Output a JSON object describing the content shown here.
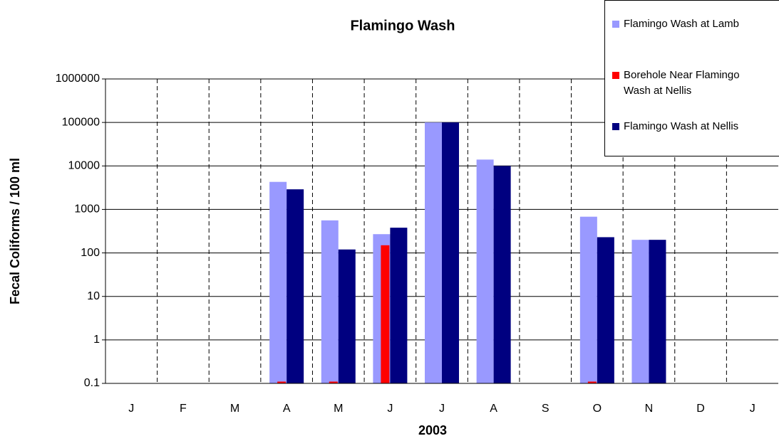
{
  "chart_data": {
    "type": "bar",
    "title": "Flamingo Wash",
    "x_label": "2003",
    "y_label": "Fecal Coliforms / 100 ml",
    "categories": [
      "J",
      "F",
      "M",
      "A",
      "M",
      "J",
      "J",
      "A",
      "S",
      "O",
      "N",
      "D",
      "J"
    ],
    "series": [
      {
        "name": "Flamingo Wash at Lamb",
        "color": "#9999ff",
        "values": [
          null,
          null,
          null,
          4300,
          560,
          270,
          100000,
          14000,
          null,
          680,
          200,
          null,
          null
        ]
      },
      {
        "name": "Borehole Near Flamingo Wash at Nellis",
        "color": "#ff0000",
        "values": [
          null,
          null,
          null,
          0.11,
          0.11,
          150,
          null,
          null,
          null,
          0.11,
          null,
          null,
          null
        ]
      },
      {
        "name": "Flamingo Wash at Nellis",
        "color": "#000080",
        "values": [
          null,
          null,
          null,
          2900,
          120,
          380,
          100000,
          10000,
          null,
          230,
          200,
          null,
          null
        ]
      }
    ],
    "log_scale": true,
    "ylim": [
      0.1,
      1000000
    ],
    "yticks": [
      0.1,
      1,
      10,
      100,
      1000,
      10000,
      100000,
      1000000
    ],
    "grid": true,
    "legend": "top-right"
  }
}
